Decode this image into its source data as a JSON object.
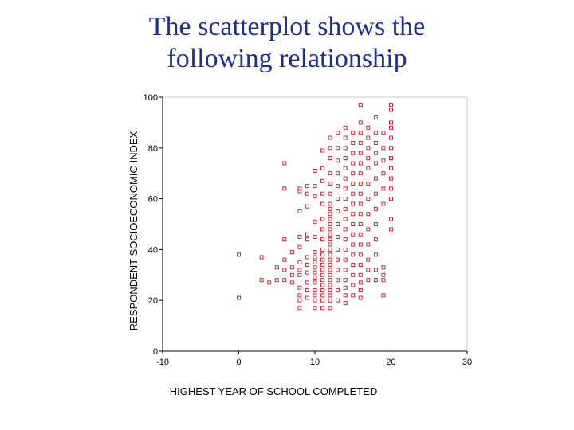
{
  "slide": {
    "title_line1": "The scatterplot shows the",
    "title_line2": "following relationship"
  },
  "colors": {
    "title": "#1f2f8f",
    "marker": "#c8283a",
    "axis": "#000000"
  },
  "chart_data": {
    "type": "scatter",
    "xlabel": "HIGHEST YEAR OF SCHOOL COMPLETED",
    "ylabel": "RESPONDENT SOCIOECONOMIC INDEX",
    "xlim": [
      -10,
      30
    ],
    "ylim": [
      0,
      100
    ],
    "xticks": [
      -10,
      0,
      10,
      20,
      30
    ],
    "yticks": [
      0,
      20,
      40,
      60,
      80,
      100
    ],
    "grid": false,
    "marker": "open-square",
    "points": [
      [
        0,
        38
      ],
      [
        0,
        21
      ],
      [
        3,
        37
      ],
      [
        3,
        28
      ],
      [
        4,
        27
      ],
      [
        5,
        33
      ],
      [
        5,
        28
      ],
      [
        6,
        74
      ],
      [
        6,
        64
      ],
      [
        6,
        44
      ],
      [
        6,
        36
      ],
      [
        6,
        32
      ],
      [
        6,
        28
      ],
      [
        7,
        39
      ],
      [
        7,
        33
      ],
      [
        7,
        30
      ],
      [
        7,
        27
      ],
      [
        8,
        64
      ],
      [
        8,
        63
      ],
      [
        8,
        55
      ],
      [
        8,
        45
      ],
      [
        8,
        41
      ],
      [
        8,
        35
      ],
      [
        8,
        32
      ],
      [
        8,
        30
      ],
      [
        8,
        25
      ],
      [
        8,
        22
      ],
      [
        8,
        20
      ],
      [
        8,
        17
      ],
      [
        9,
        65
      ],
      [
        9,
        62
      ],
      [
        9,
        57
      ],
      [
        9,
        46
      ],
      [
        9,
        44
      ],
      [
        9,
        37
      ],
      [
        9,
        34
      ],
      [
        9,
        31
      ],
      [
        9,
        27
      ],
      [
        9,
        24
      ],
      [
        9,
        21
      ],
      [
        10,
        71
      ],
      [
        10,
        65
      ],
      [
        10,
        61
      ],
      [
        10,
        51
      ],
      [
        10,
        45
      ],
      [
        10,
        39
      ],
      [
        10,
        37
      ],
      [
        10,
        35
      ],
      [
        10,
        33
      ],
      [
        10,
        31
      ],
      [
        10,
        29
      ],
      [
        10,
        27
      ],
      [
        10,
        24
      ],
      [
        10,
        22
      ],
      [
        10,
        20
      ],
      [
        10,
        17
      ],
      [
        11,
        79
      ],
      [
        11,
        72
      ],
      [
        11,
        67
      ],
      [
        11,
        62
      ],
      [
        11,
        58
      ],
      [
        11,
        52
      ],
      [
        11,
        48
      ],
      [
        11,
        44
      ],
      [
        11,
        40
      ],
      [
        11,
        38
      ],
      [
        11,
        36
      ],
      [
        11,
        34
      ],
      [
        11,
        32
      ],
      [
        11,
        30
      ],
      [
        11,
        28
      ],
      [
        11,
        26
      ],
      [
        11,
        24
      ],
      [
        11,
        22
      ],
      [
        11,
        20
      ],
      [
        11,
        17
      ],
      [
        12,
        84
      ],
      [
        12,
        80
      ],
      [
        12,
        76
      ],
      [
        12,
        70
      ],
      [
        12,
        66
      ],
      [
        12,
        62
      ],
      [
        12,
        58
      ],
      [
        12,
        56
      ],
      [
        12,
        54
      ],
      [
        12,
        52
      ],
      [
        12,
        50
      ],
      [
        12,
        48
      ],
      [
        12,
        46
      ],
      [
        12,
        44
      ],
      [
        12,
        42
      ],
      [
        12,
        40
      ],
      [
        12,
        38
      ],
      [
        12,
        36
      ],
      [
        12,
        34
      ],
      [
        12,
        32
      ],
      [
        12,
        30
      ],
      [
        12,
        28
      ],
      [
        12,
        26
      ],
      [
        12,
        24
      ],
      [
        12,
        22
      ],
      [
        12,
        20
      ],
      [
        12,
        17
      ],
      [
        13,
        86
      ],
      [
        13,
        80
      ],
      [
        13,
        75
      ],
      [
        13,
        70
      ],
      [
        13,
        65
      ],
      [
        13,
        60
      ],
      [
        13,
        55
      ],
      [
        13,
        50
      ],
      [
        13,
        45
      ],
      [
        13,
        40
      ],
      [
        13,
        36
      ],
      [
        13,
        32
      ],
      [
        13,
        28
      ],
      [
        13,
        24
      ],
      [
        13,
        20
      ],
      [
        14,
        88
      ],
      [
        14,
        84
      ],
      [
        14,
        80
      ],
      [
        14,
        76
      ],
      [
        14,
        72
      ],
      [
        14,
        68
      ],
      [
        14,
        64
      ],
      [
        14,
        60
      ],
      [
        14,
        56
      ],
      [
        14,
        52
      ],
      [
        14,
        48
      ],
      [
        14,
        44
      ],
      [
        14,
        40
      ],
      [
        14,
        36
      ],
      [
        14,
        32
      ],
      [
        14,
        28
      ],
      [
        14,
        25
      ],
      [
        14,
        22
      ],
      [
        14,
        19
      ],
      [
        15,
        86
      ],
      [
        15,
        82
      ],
      [
        15,
        78
      ],
      [
        15,
        74
      ],
      [
        15,
        70
      ],
      [
        15,
        66
      ],
      [
        15,
        62
      ],
      [
        15,
        58
      ],
      [
        15,
        54
      ],
      [
        15,
        50
      ],
      [
        15,
        46
      ],
      [
        15,
        42
      ],
      [
        15,
        38
      ],
      [
        15,
        34
      ],
      [
        15,
        30
      ],
      [
        15,
        26
      ],
      [
        15,
        22
      ],
      [
        16,
        97
      ],
      [
        16,
        90
      ],
      [
        16,
        86
      ],
      [
        16,
        82
      ],
      [
        16,
        78
      ],
      [
        16,
        74
      ],
      [
        16,
        70
      ],
      [
        16,
        66
      ],
      [
        16,
        62
      ],
      [
        16,
        58
      ],
      [
        16,
        54
      ],
      [
        16,
        50
      ],
      [
        16,
        46
      ],
      [
        16,
        42
      ],
      [
        16,
        38
      ],
      [
        16,
        34
      ],
      [
        16,
        30
      ],
      [
        16,
        27
      ],
      [
        16,
        24
      ],
      [
        16,
        21
      ],
      [
        17,
        88
      ],
      [
        17,
        84
      ],
      [
        17,
        80
      ],
      [
        17,
        76
      ],
      [
        17,
        72
      ],
      [
        17,
        66
      ],
      [
        17,
        60
      ],
      [
        17,
        54
      ],
      [
        17,
        48
      ],
      [
        17,
        42
      ],
      [
        17,
        36
      ],
      [
        17,
        32
      ],
      [
        17,
        28
      ],
      [
        18,
        92
      ],
      [
        18,
        86
      ],
      [
        18,
        82
      ],
      [
        18,
        78
      ],
      [
        18,
        74
      ],
      [
        18,
        68
      ],
      [
        18,
        62
      ],
      [
        18,
        56
      ],
      [
        18,
        50
      ],
      [
        18,
        44
      ],
      [
        18,
        38
      ],
      [
        18,
        32
      ],
      [
        18,
        28
      ],
      [
        19,
        86
      ],
      [
        19,
        80
      ],
      [
        19,
        75
      ],
      [
        19,
        70
      ],
      [
        19,
        64
      ],
      [
        19,
        58
      ],
      [
        19,
        33
      ],
      [
        19,
        30
      ],
      [
        19,
        28
      ],
      [
        19,
        22
      ],
      [
        20,
        97
      ],
      [
        20,
        95
      ],
      [
        20,
        90
      ],
      [
        20,
        88
      ],
      [
        20,
        84
      ],
      [
        20,
        80
      ],
      [
        20,
        76
      ],
      [
        20,
        72
      ],
      [
        20,
        68
      ],
      [
        20,
        64
      ],
      [
        20,
        60
      ],
      [
        20,
        52
      ],
      [
        20,
        48
      ]
    ]
  }
}
